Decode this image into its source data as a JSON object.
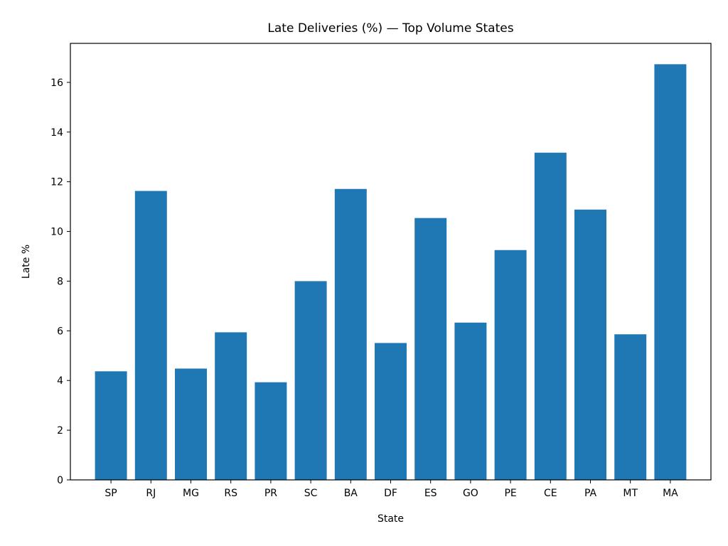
{
  "chart_data": {
    "type": "bar",
    "title": "Late Deliveries (%) — Top Volume States",
    "xlabel": "State",
    "ylabel": "Late %",
    "categories": [
      "SP",
      "RJ",
      "MG",
      "RS",
      "PR",
      "SC",
      "BA",
      "DF",
      "ES",
      "GO",
      "PE",
      "CE",
      "PA",
      "MT",
      "MA"
    ],
    "values": [
      4.37,
      11.63,
      4.48,
      5.94,
      3.93,
      8.0,
      11.71,
      5.51,
      10.54,
      6.33,
      9.25,
      13.17,
      10.88,
      5.86,
      16.73
    ],
    "ylim": [
      0,
      17.57
    ],
    "yticks": [
      0,
      2,
      4,
      6,
      8,
      10,
      12,
      14,
      16
    ],
    "grid": false,
    "legend": "none",
    "bar_color": "#1f77b4"
  }
}
